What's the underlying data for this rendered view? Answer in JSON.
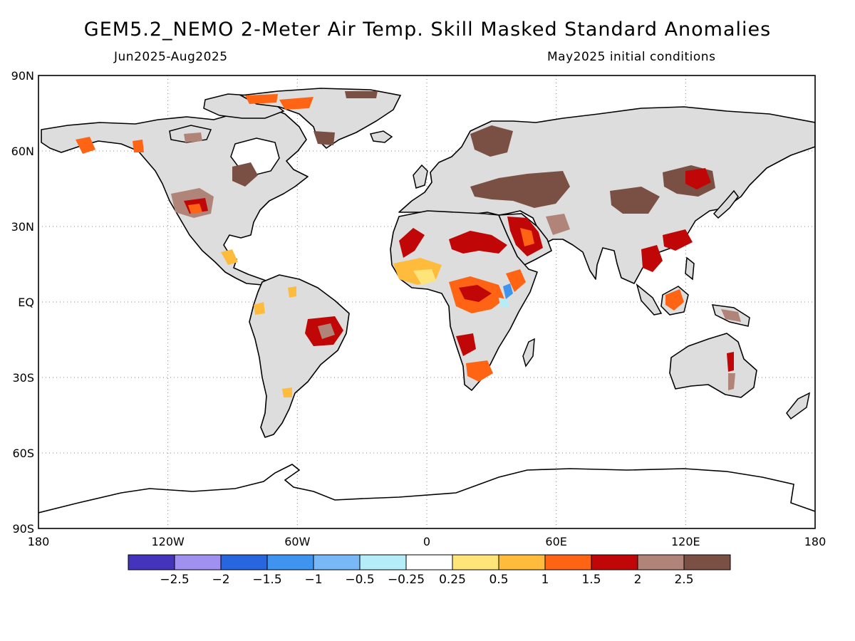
{
  "title": "GEM5.2_NEMO 2-Meter Air Temp. Skill Masked Standard Anomalies",
  "subtitle_left": "Jun2025-Aug2025",
  "subtitle_right": "May2025 initial conditions",
  "map": {
    "projection": "equirectangular",
    "lon_range": [
      -180,
      180
    ],
    "lat_range": [
      -90,
      90
    ],
    "grid": "dotted",
    "lat_labels": [
      "90N",
      "60N",
      "30N",
      "EQ",
      "30S",
      "60S",
      "90S"
    ],
    "lon_labels": [
      "180",
      "120W",
      "60W",
      "0",
      "60E",
      "120E",
      "180"
    ],
    "land_fill": "#dddddd",
    "anomaly_regions": [
      {
        "place": "Sahara / Sahel",
        "level": "1.5-2"
      },
      {
        "place": "Arabian Peninsula",
        "level": "1.5-2"
      },
      {
        "place": "Central Africa",
        "level": "1-1.5"
      },
      {
        "place": "Central Asia",
        "level": ">2.5"
      },
      {
        "place": "Scandinavia",
        "level": ">2.5"
      },
      {
        "place": "Northeast China",
        "level": "1.5-2"
      },
      {
        "place": "Southeast Asia",
        "level": "1.5-2"
      },
      {
        "place": "Borneo",
        "level": "1-1.5"
      },
      {
        "place": "Western United States",
        "level": "1.5-2"
      },
      {
        "place": "Central Brazil",
        "level": "1.5-2"
      },
      {
        "place": "Alaska",
        "level": "1-1.5"
      },
      {
        "place": "Greenland coast",
        "level": "1-1.5"
      },
      {
        "place": "Southern Africa",
        "level": "1-1.5"
      },
      {
        "place": "East Africa",
        "level": "-1.5 to -0.5"
      }
    ]
  },
  "colorbar": {
    "colors": [
      "#4433bb",
      "#a090f0",
      "#2866e0",
      "#3e94ee",
      "#78b8f6",
      "#b4ecf8",
      "#ffffff",
      "#ffe47a",
      "#ffbc3c",
      "#ff6414",
      "#c00606",
      "#b08478",
      "#7a5044"
    ],
    "labels": [
      "-2.5",
      "-2",
      "-1.5",
      "-1",
      "-0.5",
      "-0.25",
      "0.25",
      "0.5",
      "1",
      "1.5",
      "2",
      "2.5"
    ]
  }
}
